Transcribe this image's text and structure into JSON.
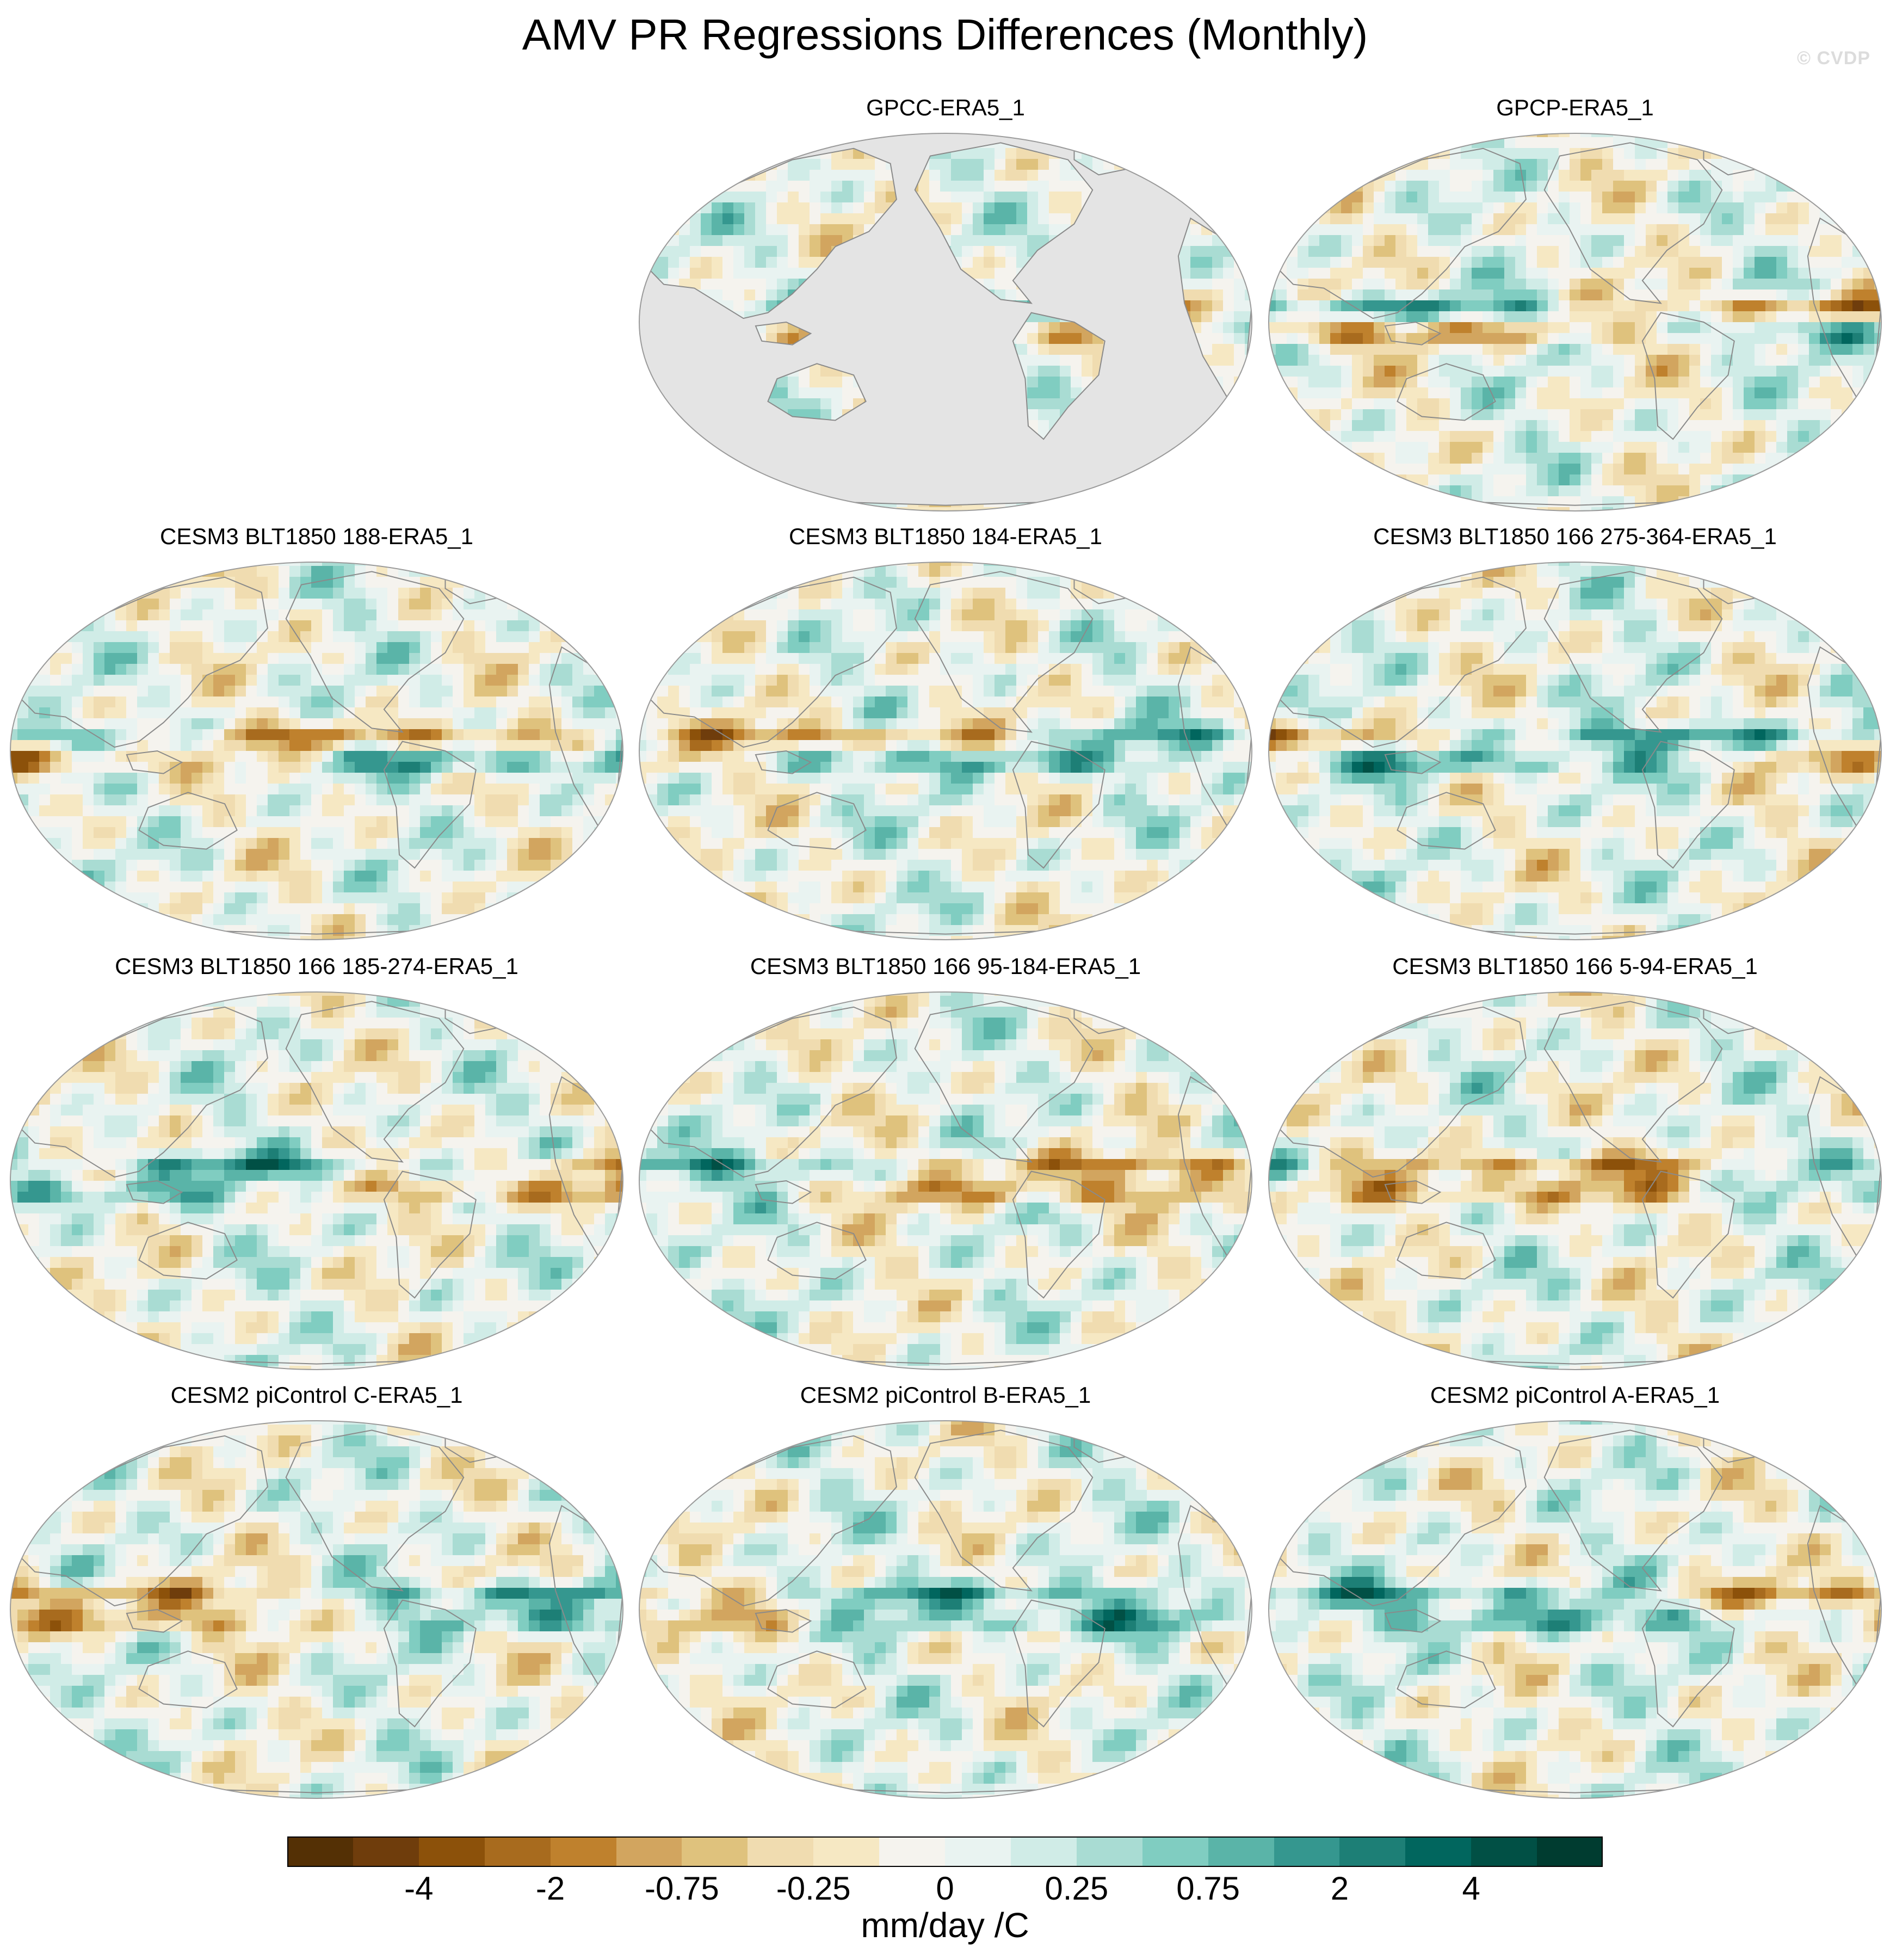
{
  "title": "AMV PR Regressions Differences (Monthly)",
  "watermark": "© CVDP",
  "panels": [
    {
      "title": "GPCC-ERA5_1",
      "land_only": true
    },
    {
      "title": "GPCP-ERA5_1",
      "land_only": false
    },
    {
      "title": "CESM3 BLT1850 188-ERA5_1",
      "land_only": false
    },
    {
      "title": "CESM3 BLT1850 184-ERA5_1",
      "land_only": false
    },
    {
      "title": "CESM3 BLT1850 166 275-364-ERA5_1",
      "land_only": false
    },
    {
      "title": "CESM3 BLT1850 166 185-274-ERA5_1",
      "land_only": false
    },
    {
      "title": "CESM3 BLT1850 166 95-184-ERA5_1",
      "land_only": false
    },
    {
      "title": "CESM3 BLT1850 166 5-94-ERA5_1",
      "land_only": false
    },
    {
      "title": "CESM2 piControl C-ERA5_1",
      "land_only": false
    },
    {
      "title": "CESM2 piControl B-ERA5_1",
      "land_only": false
    },
    {
      "title": "CESM2 piControl A-ERA5_1",
      "land_only": false
    }
  ],
  "colorbar": {
    "units": "mm/day /C",
    "colors": [
      "#543005",
      "#6f3d0c",
      "#8c510a",
      "#a86b1e",
      "#bf812d",
      "#d2a55f",
      "#dfc27d",
      "#f0dcb0",
      "#f6e8c3",
      "#f5f3ee",
      "#e9f3f1",
      "#d0ece7",
      "#a9dcd3",
      "#80cdc1",
      "#5ab4a8",
      "#35978f",
      "#1d7f76",
      "#01665e",
      "#015045",
      "#003c30"
    ],
    "labels": [
      "-4",
      "-2",
      "-0.75",
      "-0.25",
      "0",
      "0.25",
      "0.75",
      "2",
      "4"
    ]
  }
}
